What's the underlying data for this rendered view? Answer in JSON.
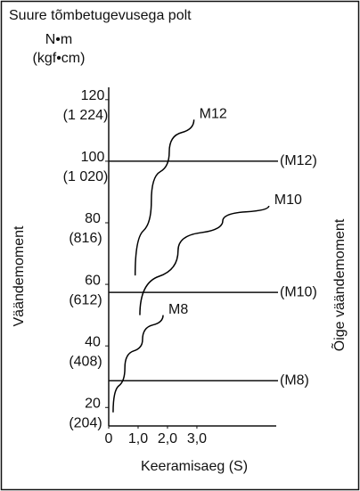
{
  "chart_data": {
    "type": "line",
    "title": "Suure tõmbetugevusega polt",
    "y_unit": "N•m",
    "y_unit_alt": "(kgf•cm)",
    "y_label": "Väändemoment",
    "y2_label": "Õige väändemoment",
    "x_label": "Keeramisaeg (S)",
    "xlim": [
      0,
      5.7
    ],
    "ylim": [
      14,
      124
    ],
    "xticks": [
      0,
      {
        "value": 1,
        "label": "1,0"
      },
      {
        "value": 2,
        "label": "2,0"
      },
      {
        "value": 3,
        "label": "3,0"
      }
    ],
    "yticks": [
      20,
      40,
      60,
      80,
      100,
      120
    ],
    "ytick_alt_labels": [
      "(204)",
      "(408)",
      "(612)",
      "(816)",
      "(1 020)",
      "(1 224)"
    ],
    "series": [
      {
        "name": "M12",
        "color": "#000000",
        "x": [
          0.9,
          1.45,
          2.06,
          2.9
        ],
        "values": [
          62.9,
          87,
          103,
          113.5
        ]
      },
      {
        "name": "M10",
        "color": "#000000",
        "x": [
          1.06,
          2.36,
          3.88,
          5.45
        ],
        "values": [
          50,
          71,
          80.6,
          85.5
        ]
      },
      {
        "name": "M8",
        "color": "#000000",
        "x": [
          0.15,
          0.55,
          1.15,
          1.85
        ],
        "values": [
          18.4,
          32.9,
          42,
          50
        ]
      }
    ],
    "reference_lines": [
      {
        "label": "(M12)",
        "value": 100
      },
      {
        "label": "(M10)",
        "value": 57.4
      },
      {
        "label": "(M8)",
        "value": 28.7
      }
    ]
  }
}
